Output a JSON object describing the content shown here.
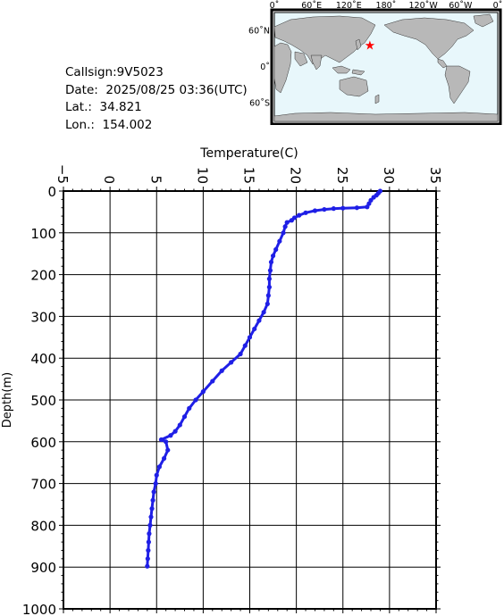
{
  "info": {
    "callsign": "Callsign:9V5023",
    "date": "Date:  2025/08/25 03:36(UTC)",
    "lat": "Lat.:  34.821",
    "lon": "Lon.:  154.002"
  },
  "map": {
    "top_ticks": [
      "0˚",
      "60˚E",
      "120˚E",
      "180˚",
      "120˚W",
      "60˚W",
      "0˚"
    ],
    "side_ticks": [
      "60˚N",
      "0˚",
      "60˚S"
    ],
    "marker": {
      "lat": 34.821,
      "lon": 154.002
    },
    "colors": {
      "ocean": "#e8f7fb",
      "land": "#b8b8b8",
      "marker": "#ff0000"
    }
  },
  "chart_data": {
    "type": "line",
    "title": "",
    "xlabel": "Temperature(C)",
    "ylabel": "Depth(m)",
    "xlim": [
      -5,
      35
    ],
    "ylim": [
      0,
      1000
    ],
    "y_inverted": true,
    "x_axis_position": "top",
    "grid": true,
    "x_ticks": [
      -5,
      0,
      5,
      10,
      15,
      20,
      25,
      30,
      35
    ],
    "y_ticks": [
      0,
      100,
      200,
      300,
      400,
      500,
      600,
      700,
      800,
      900,
      1000
    ],
    "series": [
      {
        "color": "#1f1fe6",
        "points": [
          [
            29.0,
            0
          ],
          [
            28.8,
            5
          ],
          [
            28.6,
            10
          ],
          [
            28.3,
            15
          ],
          [
            28.0,
            22
          ],
          [
            27.8,
            30
          ],
          [
            27.6,
            38
          ],
          [
            26.5,
            40
          ],
          [
            25.0,
            41
          ],
          [
            24.0,
            42
          ],
          [
            23.0,
            44
          ],
          [
            22.0,
            47
          ],
          [
            21.0,
            52
          ],
          [
            20.3,
            58
          ],
          [
            19.8,
            64
          ],
          [
            19.5,
            70
          ],
          [
            19.0,
            75
          ],
          [
            18.8,
            85
          ],
          [
            18.6,
            100
          ],
          [
            18.2,
            120
          ],
          [
            17.8,
            140
          ],
          [
            17.5,
            155
          ],
          [
            17.3,
            170
          ],
          [
            17.2,
            190
          ],
          [
            17.1,
            210
          ],
          [
            17.1,
            230
          ],
          [
            17.0,
            250
          ],
          [
            16.9,
            270
          ],
          [
            16.5,
            290
          ],
          [
            16.0,
            310
          ],
          [
            15.5,
            330
          ],
          [
            15.0,
            350
          ],
          [
            14.5,
            370
          ],
          [
            14.0,
            390
          ],
          [
            13.0,
            410
          ],
          [
            12.0,
            430
          ],
          [
            11.0,
            455
          ],
          [
            10.0,
            480
          ],
          [
            9.2,
            500
          ],
          [
            8.5,
            520
          ],
          [
            8.0,
            540
          ],
          [
            7.5,
            560
          ],
          [
            7.0,
            575
          ],
          [
            6.5,
            585
          ],
          [
            5.5,
            595
          ],
          [
            6.0,
            600
          ],
          [
            6.2,
            620
          ],
          [
            5.8,
            640
          ],
          [
            5.3,
            660
          ],
          [
            5.0,
            680
          ],
          [
            4.9,
            700
          ],
          [
            4.7,
            720
          ],
          [
            4.6,
            740
          ],
          [
            4.5,
            760
          ],
          [
            4.4,
            780
          ],
          [
            4.3,
            800
          ],
          [
            4.2,
            820
          ],
          [
            4.15,
            840
          ],
          [
            4.1,
            860
          ],
          [
            4.05,
            880
          ],
          [
            4.0,
            898
          ]
        ]
      }
    ]
  }
}
